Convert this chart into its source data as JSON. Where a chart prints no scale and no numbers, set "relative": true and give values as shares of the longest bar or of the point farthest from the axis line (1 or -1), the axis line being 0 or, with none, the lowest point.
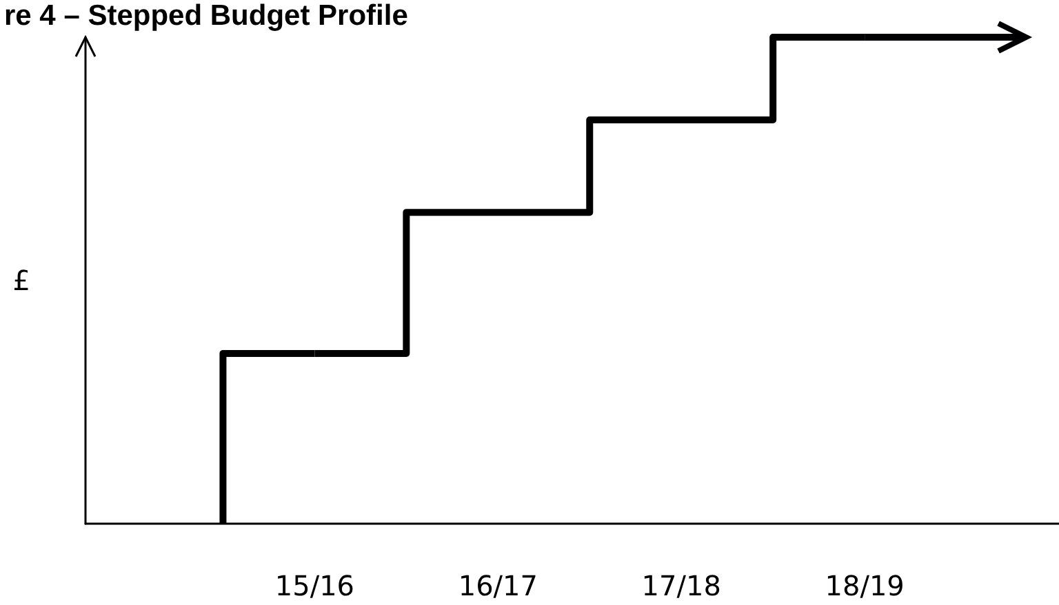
{
  "chart_data": {
    "type": "step",
    "title": "re 4 – Stepped Budget Profile",
    "ylabel": "£",
    "categories": [
      "15/16",
      "16/17",
      "17/18",
      "18/19"
    ],
    "series": [
      {
        "color": "#000000",
        "values": [
          0.35,
          0.64,
          0.83,
          1
        ]
      }
    ],
    "relative": true,
    "grid": false,
    "marker": "none",
    "line_style": "solid"
  }
}
